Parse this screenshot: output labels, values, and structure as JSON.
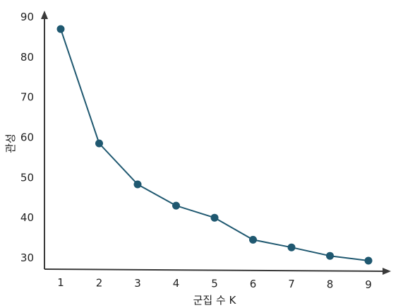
{
  "chart_data": {
    "type": "line",
    "x": [
      1,
      2,
      3,
      4,
      5,
      6,
      7,
      8,
      9
    ],
    "series": [
      {
        "values": [
          87,
          58.5,
          48.3,
          43,
          40,
          34.5,
          32.6,
          30.5,
          29.3
        ]
      }
    ],
    "xticks": [
      "1",
      "2",
      "3",
      "4",
      "5",
      "6",
      "7",
      "8",
      "9"
    ],
    "yticks": [
      "30",
      "40",
      "50",
      "60",
      "70",
      "80",
      "90"
    ],
    "xlabel": "군집 수 K",
    "ylabel": "관성",
    "ylim": [
      27,
      90
    ],
    "grid": false,
    "colors": {
      "line": "#1f5870",
      "marker": "#1f5870",
      "axis": "#3a3a3a"
    }
  }
}
